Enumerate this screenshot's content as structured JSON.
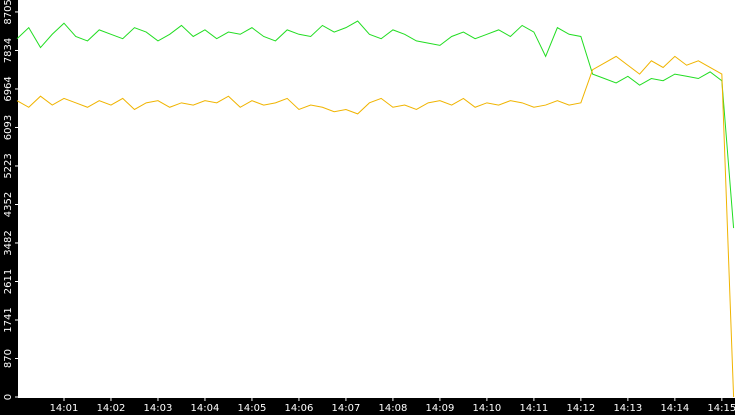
{
  "chart_data": {
    "type": "line",
    "x": [
      840,
      840.25,
      840.5,
      840.75,
      841,
      841.25,
      841.5,
      841.75,
      842,
      842.25,
      842.5,
      842.75,
      843,
      843.25,
      843.5,
      843.75,
      844,
      844.25,
      844.5,
      844.75,
      845,
      845.25,
      845.5,
      845.75,
      846,
      846.25,
      846.5,
      846.75,
      847,
      847.25,
      847.5,
      847.75,
      848,
      848.25,
      848.5,
      848.75,
      849,
      849.25,
      849.5,
      849.75,
      850,
      850.25,
      850.5,
      850.75,
      851,
      851.25,
      851.5,
      851.75,
      852,
      852.25,
      852.5,
      852.75,
      853,
      853.25,
      853.5,
      853.75,
      854,
      854.25,
      854.5,
      854.75,
      855,
      855.25
    ],
    "series": [
      {
        "color": "#22dd22",
        "values": [
          8100,
          8350,
          7900,
          8200,
          8450,
          8150,
          8050,
          8300,
          8200,
          8100,
          8350,
          8250,
          8050,
          8200,
          8400,
          8150,
          8300,
          8100,
          8250,
          8200,
          8350,
          8150,
          8050,
          8300,
          8200,
          8150,
          8400,
          8250,
          8350,
          8500,
          8200,
          8100,
          8300,
          8200,
          8050,
          8000,
          7950,
          8150,
          8250,
          8100,
          8200,
          8300,
          8150,
          8400,
          8250,
          7700,
          8350,
          8200,
          8150,
          7300,
          7200,
          7100,
          7250,
          7050,
          7200,
          7150,
          7300,
          7250,
          7200,
          7350,
          7150,
          3820
        ]
      },
      {
        "color": "#f0b400",
        "values": [
          6700,
          6550,
          6800,
          6600,
          6750,
          6650,
          6550,
          6700,
          6600,
          6750,
          6500,
          6650,
          6700,
          6550,
          6650,
          6600,
          6700,
          6650,
          6800,
          6550,
          6700,
          6600,
          6650,
          6750,
          6500,
          6600,
          6550,
          6450,
          6500,
          6400,
          6650,
          6750,
          6550,
          6600,
          6500,
          6650,
          6700,
          6600,
          6750,
          6550,
          6650,
          6600,
          6700,
          6650,
          6550,
          6600,
          6700,
          6600,
          6650,
          7400,
          7550,
          7700,
          7500,
          7300,
          7600,
          7450,
          7700,
          7500,
          7600,
          7450,
          7300,
          0
        ]
      }
    ],
    "xlim": [
      840,
      855.28
    ],
    "xticks": [
      {
        "value": 841,
        "label": "14:01"
      },
      {
        "value": 842,
        "label": "14:02"
      },
      {
        "value": 843,
        "label": "14:03"
      },
      {
        "value": 844,
        "label": "14:04"
      },
      {
        "value": 845,
        "label": "14:05"
      },
      {
        "value": 846,
        "label": "14:06"
      },
      {
        "value": 847,
        "label": "14:07"
      },
      {
        "value": 848,
        "label": "14:08"
      },
      {
        "value": 849,
        "label": "14:09"
      },
      {
        "value": 850,
        "label": "14:10"
      },
      {
        "value": 851,
        "label": "14:11"
      },
      {
        "value": 852,
        "label": "14:12"
      },
      {
        "value": 853,
        "label": "14:13"
      },
      {
        "value": 854,
        "label": "14:14"
      },
      {
        "value": 855,
        "label": "14:15"
      }
    ],
    "ylim": [
      0,
      8975
    ],
    "yticks": [
      0,
      870,
      1741,
      2611,
      3482,
      4352,
      5223,
      6093,
      6964,
      7834,
      8705
    ]
  }
}
